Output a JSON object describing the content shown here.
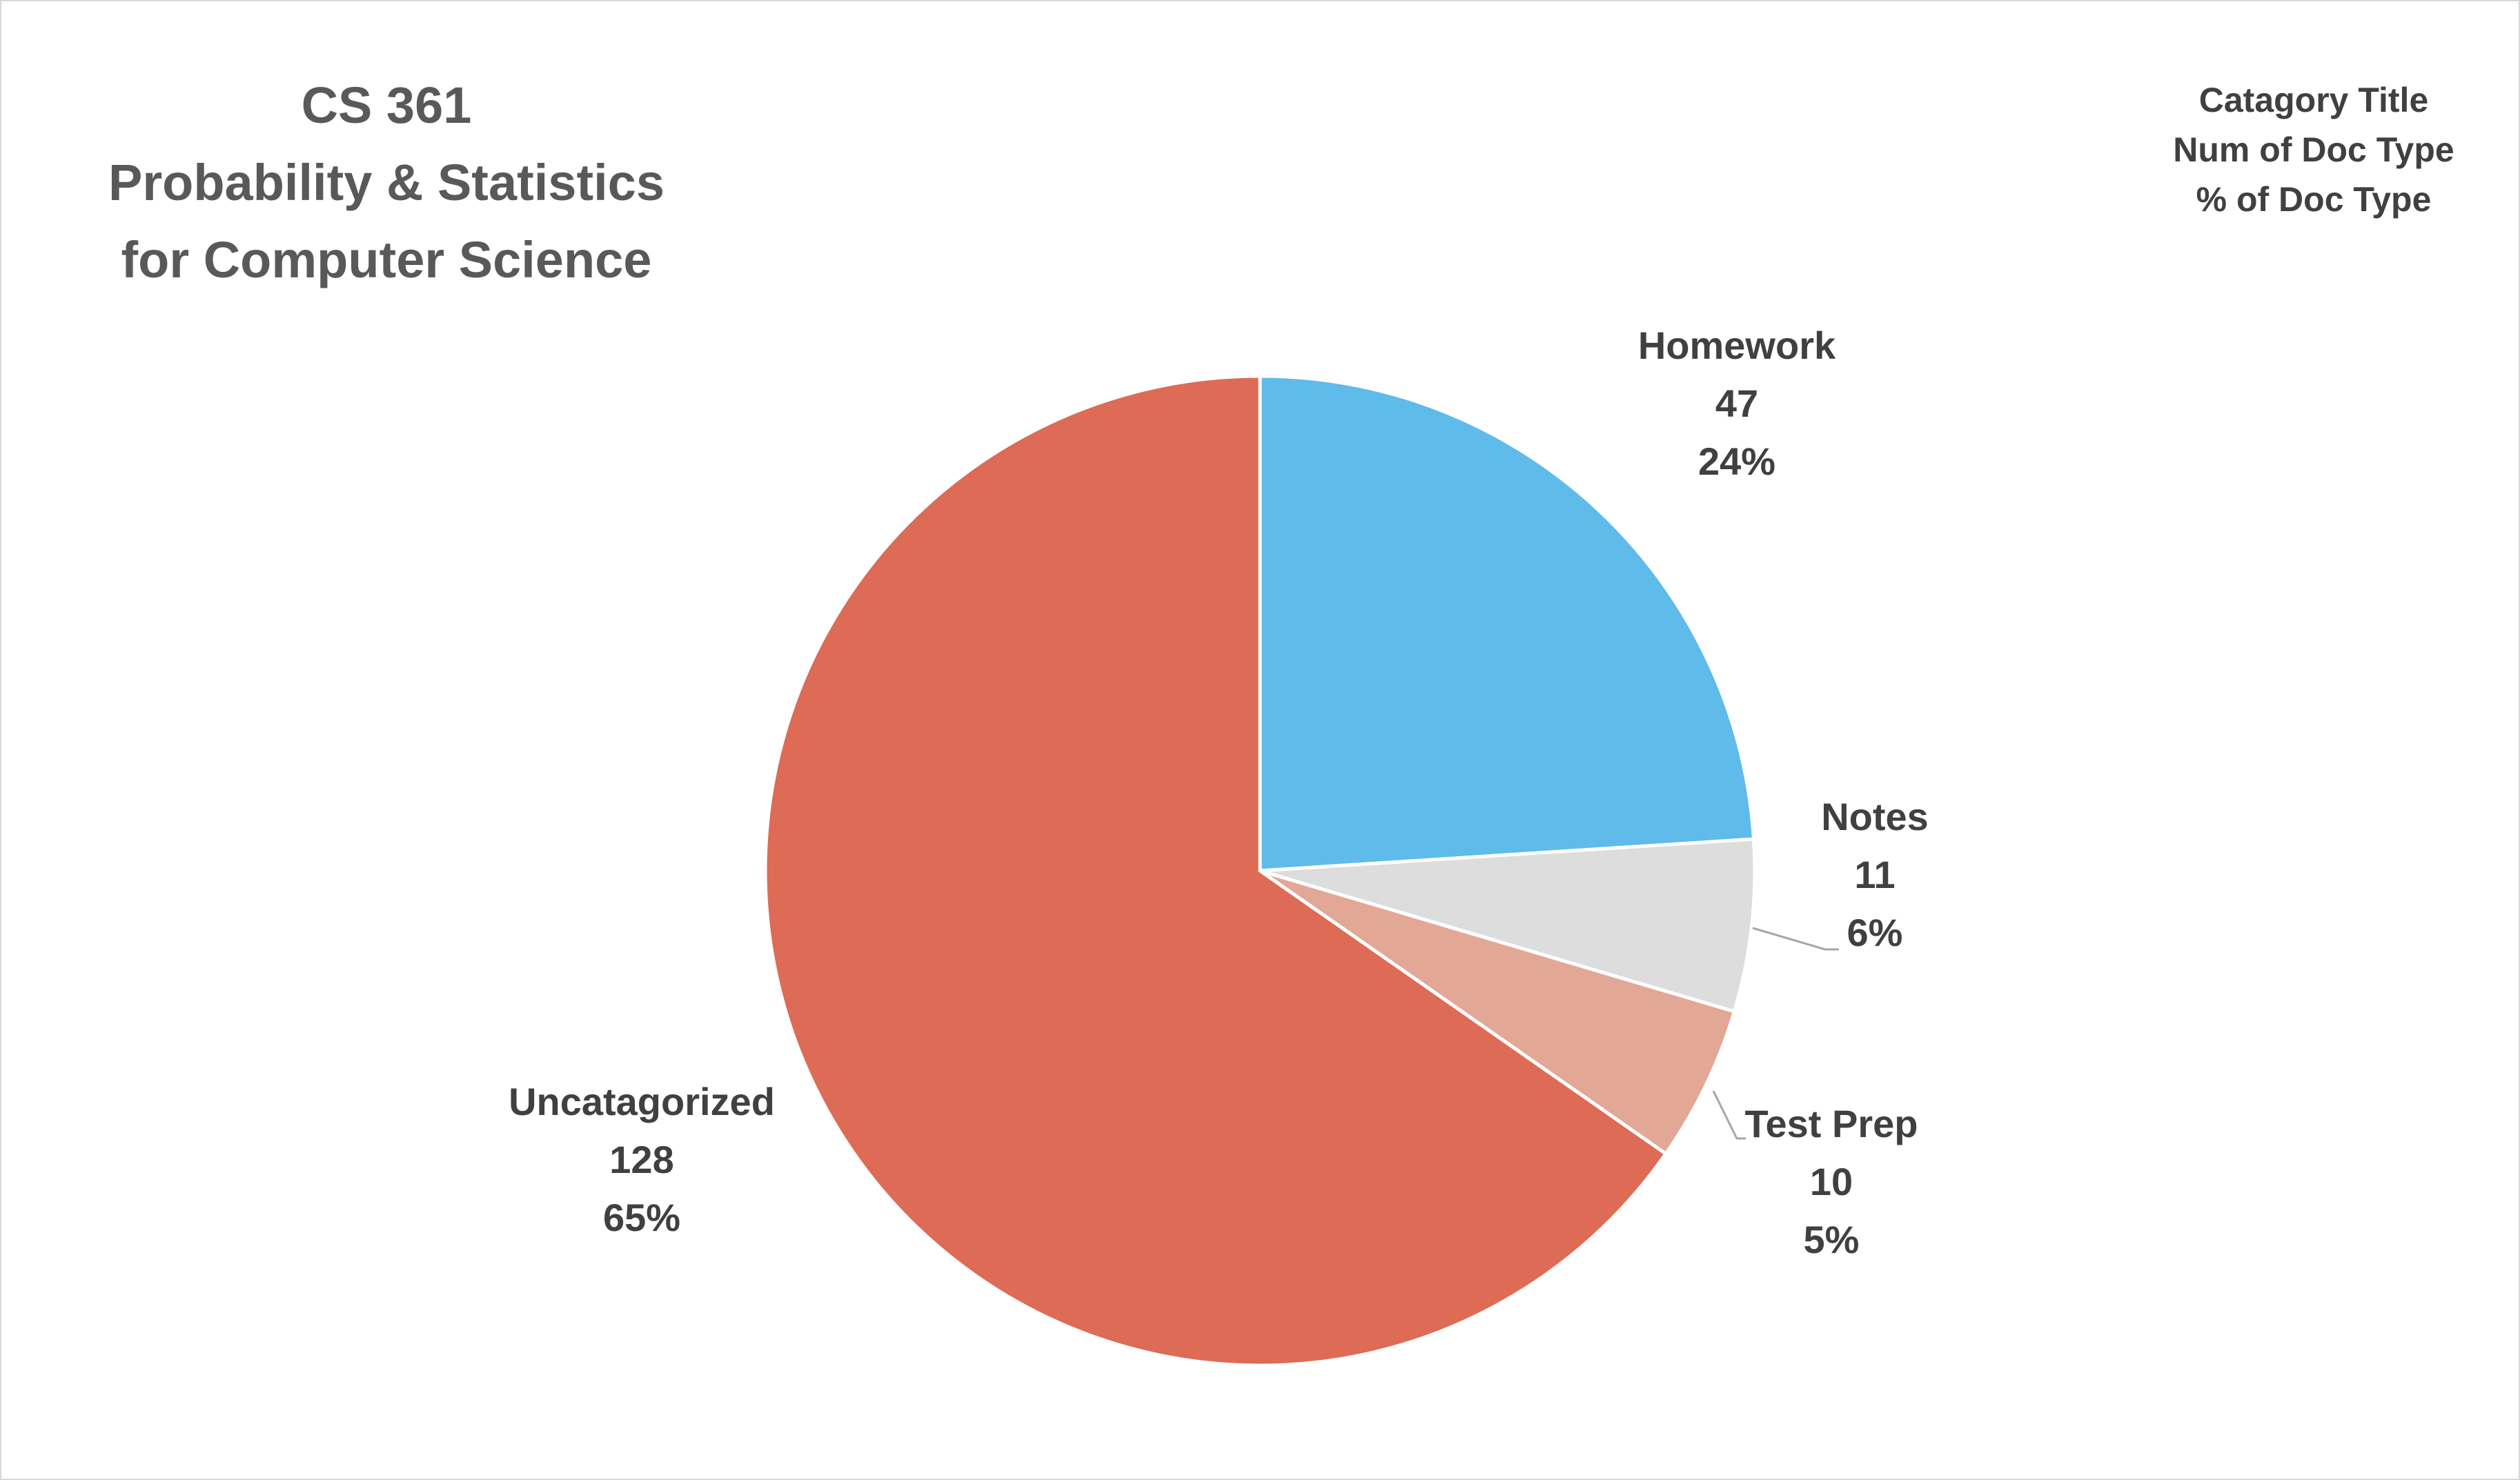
{
  "chart_data": {
    "type": "pie",
    "title": [
      "CS 361",
      "Probability & Statistics",
      "for Computer Science"
    ],
    "legend_note": [
      "Catagory Title",
      "Num of Doc Type",
      "% of Doc Type"
    ],
    "legend_position": "top-right",
    "slices": [
      {
        "label": "Homework",
        "value": 47,
        "percent": "24%",
        "color": "#5fbbea"
      },
      {
        "label": "Notes",
        "value": 11,
        "percent": "6%",
        "color": "#dddddd"
      },
      {
        "label": "Test Prep",
        "value": 10,
        "percent": "5%",
        "color": "#e3a795"
      },
      {
        "label": "Uncatagorized",
        "value": 128,
        "percent": "65%",
        "color": "#de6b56"
      }
    ]
  }
}
